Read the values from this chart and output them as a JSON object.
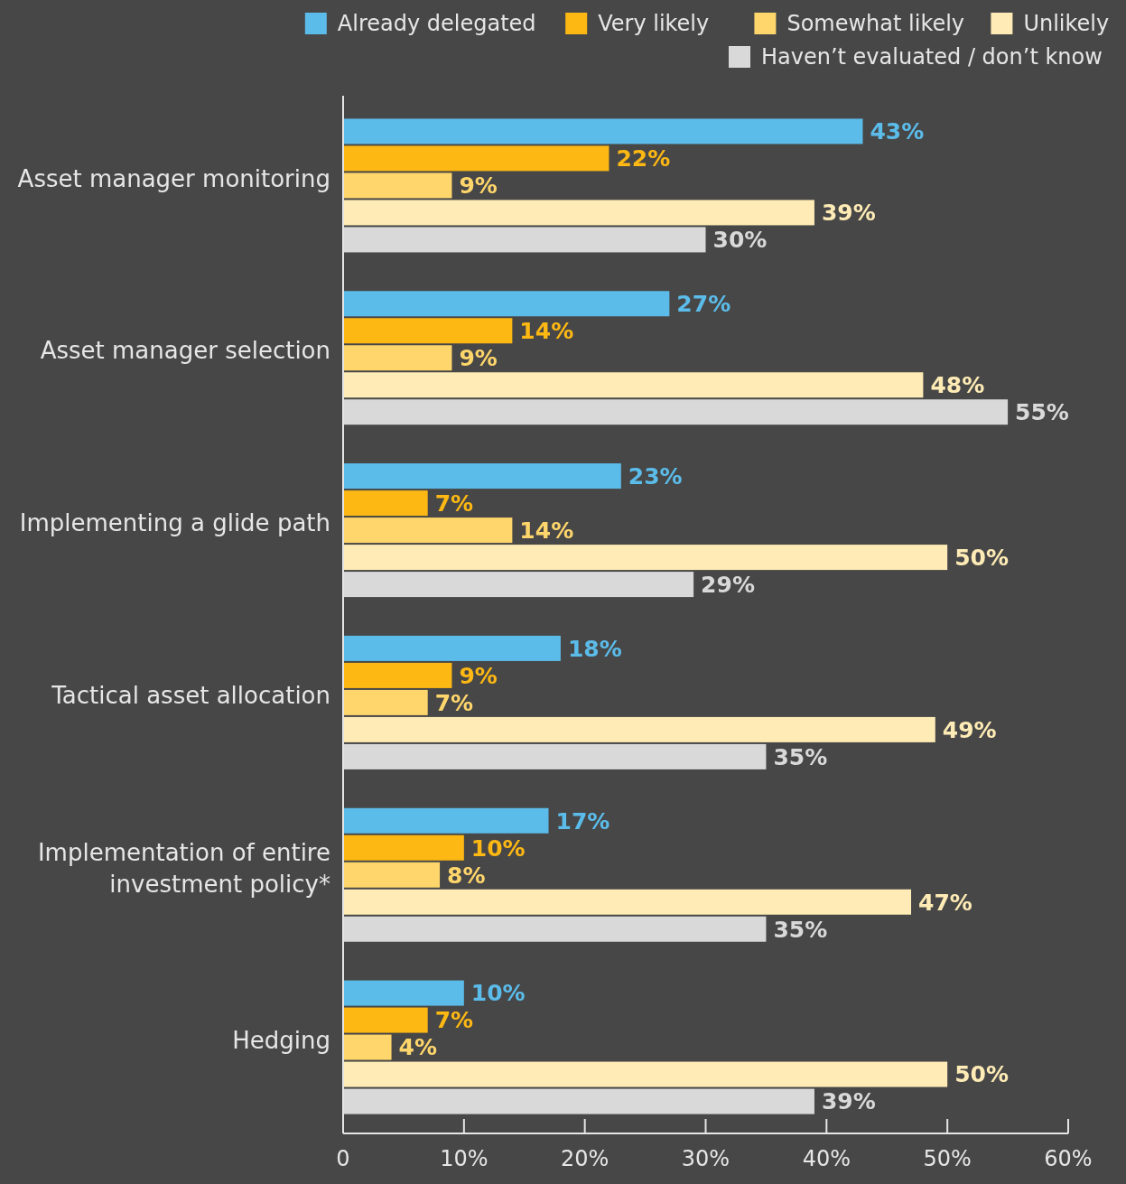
{
  "chart_data": {
    "type": "bar",
    "orientation": "horizontal",
    "categories": [
      "Asset manager monitoring",
      "Asset manager selection",
      "Implementing a glide path",
      "Tactical asset allocation",
      "Implementation of entire investment policy*",
      "Hedging"
    ],
    "series": [
      {
        "name": "Already delegated",
        "color": "#5bbcea",
        "values": [
          43,
          27,
          23,
          18,
          17,
          10
        ],
        "value_labels": [
          "43%",
          "27%",
          "23%",
          "18%",
          "17%",
          "10%"
        ]
      },
      {
        "name": "Very likely",
        "color": "#fdb813",
        "values": [
          22,
          14,
          7,
          9,
          10,
          7
        ],
        "value_labels": [
          "22%",
          "14%",
          "7%",
          "9%",
          "10%",
          "7%"
        ]
      },
      {
        "name": "Somewhat likely",
        "color": "#fed66b",
        "values": [
          9,
          9,
          14,
          7,
          8,
          4
        ],
        "value_labels": [
          "9%",
          "9%",
          "14%",
          "7%",
          "8%",
          "4%"
        ]
      },
      {
        "name": "Unlikely",
        "color": "#feebb5",
        "values": [
          39,
          48,
          50,
          49,
          47,
          50
        ],
        "value_labels": [
          "39%",
          "48%",
          "50%",
          "49%",
          "47%",
          "50%"
        ]
      },
      {
        "name": "Haven’t evaluated / don’t know",
        "color": "#d9d9d9",
        "values": [
          30,
          55,
          29,
          35,
          35,
          39
        ],
        "value_labels": [
          "30%",
          "55%",
          "29%",
          "35%",
          "35%",
          "39%"
        ]
      }
    ],
    "xlim": [
      0,
      60
    ],
    "xticks": [
      {
        "value": 0,
        "label": "0"
      },
      {
        "value": 10,
        "label": "10%"
      },
      {
        "value": 20,
        "label": "20%"
      },
      {
        "value": 30,
        "label": "30%"
      },
      {
        "value": 40,
        "label": "40%"
      },
      {
        "value": 50,
        "label": "50%"
      },
      {
        "value": 60,
        "label": "60%"
      }
    ],
    "legend": "top right"
  }
}
